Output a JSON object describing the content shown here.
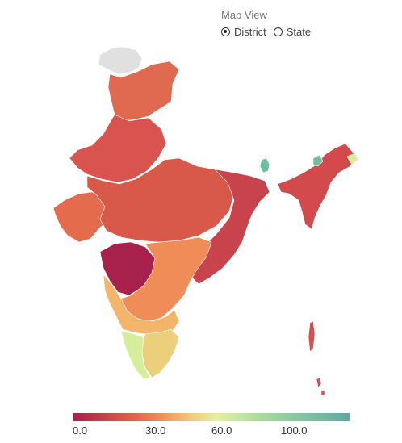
{
  "controls": {
    "title": "Map View",
    "options": [
      {
        "label": "District",
        "selected": true
      },
      {
        "label": "State",
        "selected": false
      }
    ]
  },
  "legend": {
    "ticks": [
      "0.0",
      "30.0",
      "60.0",
      "100.0"
    ],
    "colors": [
      "#a6204c",
      "#e4614a",
      "#f3c677",
      "#e6f0a0",
      "#8dcca0",
      "#5fa9a3"
    ]
  },
  "map": {
    "no_data_color": "#e0e0e0",
    "region_colors": {
      "north": "#e06a50",
      "kashmir": "#e0e0e0",
      "west": "#d9534f",
      "gujarat": "#e46b4b",
      "central": "#d8584a",
      "east": "#c9434c",
      "deccan": "#ef8c58",
      "maharashtra_west": "#a8214c",
      "south": "#f3b56a",
      "kerala": "#d6ee9c",
      "tamil_nadu": "#eccf7a",
      "northeast": "#d24a4c",
      "northeast_teal": "#6fbf9f",
      "islands": "#d8504b"
    }
  }
}
